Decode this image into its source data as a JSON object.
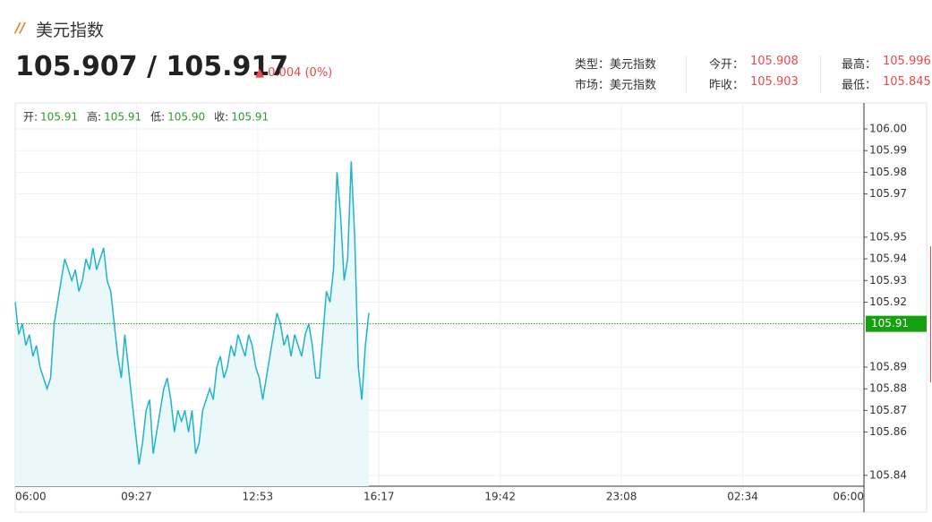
{
  "header": {
    "title": "美元指数",
    "price": "105.907 / 105.917",
    "change": "0.004 (0%)",
    "info": [
      {
        "label": "类型：",
        "value": "美元指数"
      },
      {
        "label": "市场：",
        "value": "美元指数"
      },
      {
        "label": "今开：",
        "value": "105.908"
      },
      {
        "label": "昨收：",
        "value": "105.903"
      },
      {
        "label": "最高：",
        "value": "105.996"
      },
      {
        "label": "最低：",
        "value": "105.845"
      }
    ]
  },
  "chart_data": {
    "type": "line",
    "color": "#1fb3cc",
    "fill": "#eaf8fa",
    "ohlc": [
      {
        "label": "开:",
        "value": "105.91"
      },
      {
        "label": "高:",
        "value": "105.91"
      },
      {
        "label": "低:",
        "value": "105.90"
      },
      {
        "label": "收:",
        "value": "105.91"
      }
    ],
    "xtick_labels": [
      "06:00",
      "09:27",
      "12:53",
      "16:17",
      "19:42",
      "23:08",
      "02:34",
      "06:00"
    ],
    "values": [
      105.92,
      105.905,
      105.91,
      105.9,
      105.905,
      105.895,
      105.9,
      105.89,
      105.885,
      105.88,
      105.885,
      105.91,
      105.92,
      105.93,
      105.94,
      105.935,
      105.93,
      105.935,
      105.925,
      105.93,
      105.94,
      105.935,
      105.945,
      105.935,
      105.94,
      105.945,
      105.93,
      105.925,
      105.91,
      105.895,
      105.885,
      105.905,
      105.89,
      105.875,
      105.86,
      105.845,
      105.855,
      105.87,
      105.875,
      105.85,
      105.86,
      105.87,
      105.88,
      105.885,
      105.875,
      105.86,
      105.87,
      105.865,
      105.87,
      105.86,
      105.87,
      105.85,
      105.855,
      105.87,
      105.875,
      105.88,
      105.875,
      105.89,
      105.895,
      105.885,
      105.89,
      105.9,
      105.895,
      105.905,
      105.9,
      105.895,
      105.905,
      105.9,
      105.89,
      105.885,
      105.875,
      105.885,
      105.895,
      105.905,
      105.915,
      105.91,
      105.9,
      105.905,
      105.895,
      105.905,
      105.9,
      105.895,
      105.905,
      105.91,
      105.9,
      105.885,
      105.885,
      105.905,
      105.925,
      105.92,
      105.935,
      105.98,
      105.96,
      105.93,
      105.94,
      105.985,
      105.95,
      105.89,
      105.875,
      105.9,
      105.915
    ],
    "ylim": [
      105.835,
      106.012
    ],
    "yticks": [
      {
        "value": 106,
        "label": "106.00"
      },
      105.99,
      105.98,
      105.97,
      105.95,
      105.94,
      105.93,
      105.92,
      105.89,
      105.88,
      105.87,
      105.86,
      105.84
    ],
    "last": {
      "value": 105.91,
      "label": "105.91"
    },
    "last_color": "#13a10e",
    "grid": true
  }
}
